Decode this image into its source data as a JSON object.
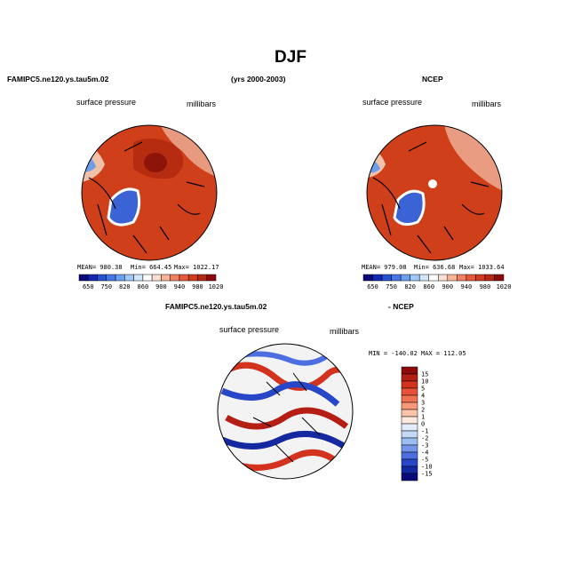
{
  "title": "DJF",
  "header": {
    "model_case": "FAMIPC5.ne120.ys.tau5m.02",
    "years": "(yrs 2000-2003)",
    "obs": "NCEP"
  },
  "panels": {
    "model": {
      "variable": "surface pressure",
      "units": "millibars",
      "stats": {
        "mean": "MEAN= 980.38",
        "min": "Min= 664.45",
        "max": "Max= 1022.17"
      }
    },
    "obs": {
      "variable": "surface pressure",
      "units": "millibars",
      "stats": {
        "mean": "MEAN= 979.08",
        "min": "Min= 636.68",
        "max": "Max= 1033.64"
      }
    },
    "diff": {
      "title_left": "FAMIPC5.ne120.ys.tau5m.02",
      "title_right": "- NCEP",
      "variable": "surface pressure",
      "units": "millibars",
      "stats": "MIN = -140.02  MAX = 112.05"
    }
  },
  "colorbars": {
    "abs": {
      "labels": [
        "650",
        "750",
        "820",
        "860",
        "900",
        "940",
        "980",
        "1020"
      ],
      "colors": [
        "#0a0a78",
        "#1428b4",
        "#2850d2",
        "#4678e6",
        "#6ea0f0",
        "#a0c8f8",
        "#d2e6fc",
        "#ffffff",
        "#fde0d2",
        "#f8b496",
        "#f08264",
        "#e65a3c",
        "#d23c1e",
        "#b42814",
        "#8c0a0a"
      ]
    },
    "diff": {
      "labels": [
        "15",
        "10",
        "5",
        "4",
        "3",
        "2",
        "1",
        "0",
        "-1",
        "-2",
        "-3",
        "-4",
        "-5",
        "-10",
        "-15"
      ],
      "colors": [
        "#8c0a0a",
        "#b41e14",
        "#d2321e",
        "#e6503c",
        "#f07050",
        "#f89878",
        "#fcc4aa",
        "#ffe8dc",
        "#e2ecfc",
        "#c4d8f8",
        "#9cbcf4",
        "#7496ea",
        "#4c6ee0",
        "#2846c8",
        "#1428a0",
        "#0a0a78"
      ]
    }
  }
}
